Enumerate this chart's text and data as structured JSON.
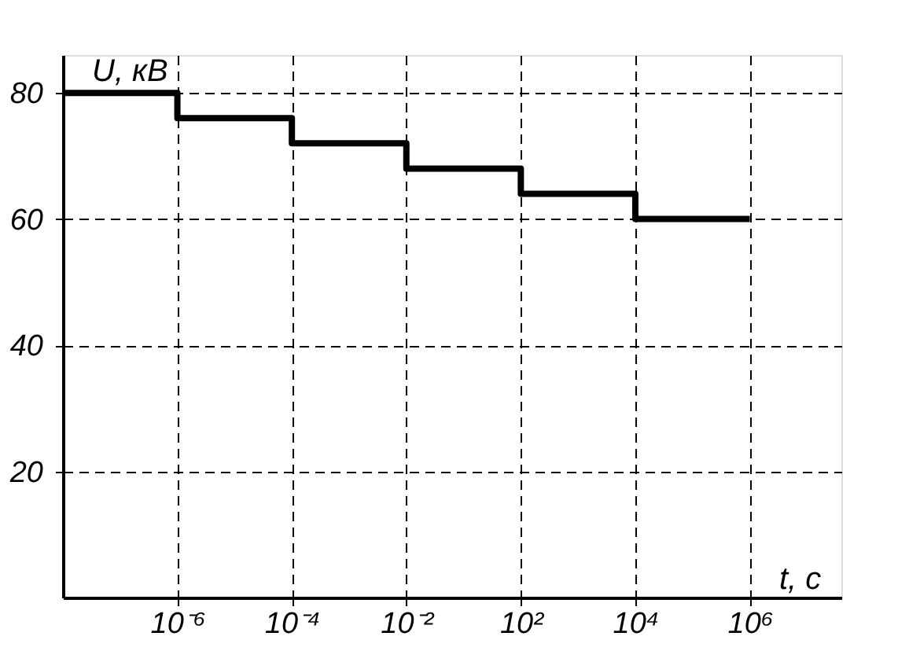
{
  "chart_data": {
    "type": "step",
    "xlabel": "t, c",
    "ylabel": "U, кВ",
    "categories": [
      null,
      "10⁻⁶",
      "10⁻⁴",
      "10⁻²",
      "10²",
      "10⁴",
      "10⁶"
    ],
    "series": [
      {
        "color": "#000000",
        "values": [
          80,
          76,
          72,
          68,
          64,
          60,
          60
        ]
      }
    ],
    "ylim": [
      0,
      86
    ],
    "yticks": [
      20,
      40,
      60,
      80
    ],
    "grid": true,
    "marker": "none",
    "line_style": "solid"
  }
}
